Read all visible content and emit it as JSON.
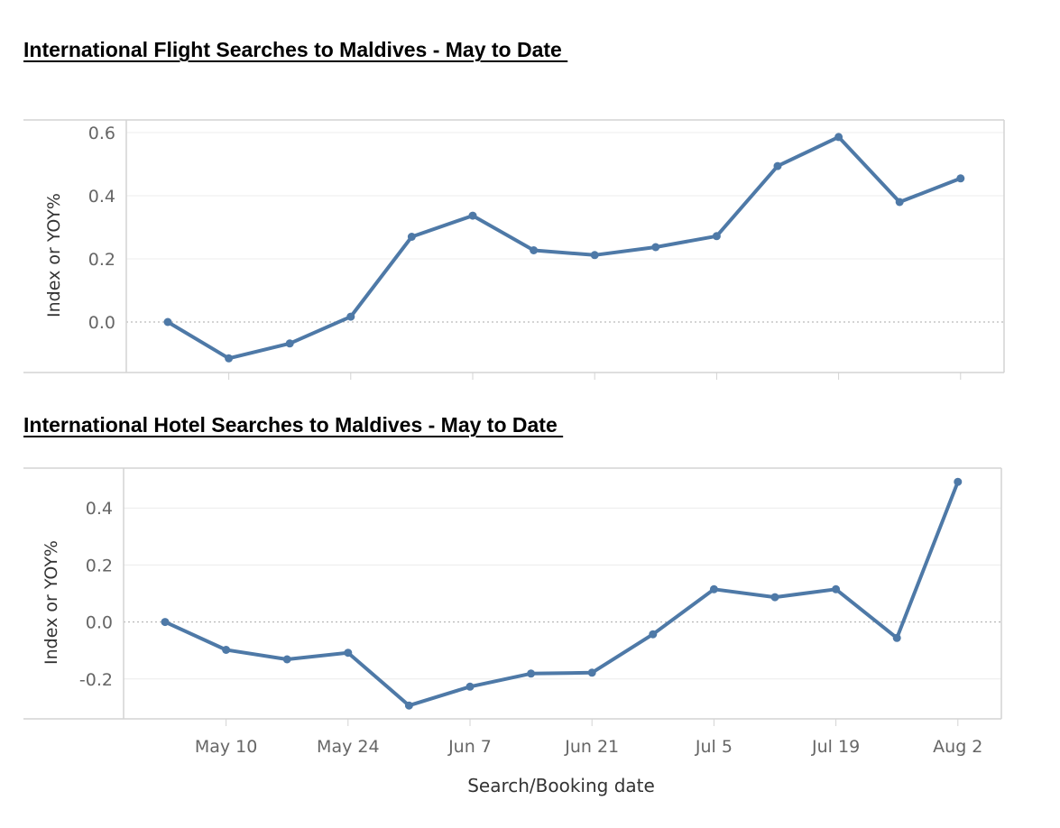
{
  "x_axis_title": "Search/Booking date",
  "x_tick_labels": [
    {
      "date": "2020-05-10",
      "label": "May 10"
    },
    {
      "date": "2020-05-24",
      "label": "May 24"
    },
    {
      "date": "2020-06-07",
      "label": "Jun 7"
    },
    {
      "date": "2020-06-21",
      "label": "Jun 21"
    },
    {
      "date": "2020-07-05",
      "label": "Jul 5"
    },
    {
      "date": "2020-07-19",
      "label": "Jul 19"
    },
    {
      "date": "2020-08-02",
      "label": "Aug 2"
    }
  ],
  "colors": {
    "line": "#4e79a7",
    "grid": "#ececec",
    "border": "#d3d3d3",
    "zero_line": "#aaaaaa"
  },
  "chart_data": [
    {
      "type": "line",
      "title": "International Flight Searches to Maldives - May to Date ",
      "xlabel": "",
      "ylabel": "Index or YOY%",
      "ylim": [
        -0.16,
        0.64
      ],
      "yticks": [
        0.0,
        0.2,
        0.4,
        0.6
      ],
      "ytick_labels": [
        "0.0",
        "0.2",
        "0.4",
        "0.6"
      ],
      "grid": true,
      "x": [
        "2020-05-03",
        "2020-05-10",
        "2020-05-17",
        "2020-05-24",
        "2020-05-31",
        "2020-06-07",
        "2020-06-14",
        "2020-06-21",
        "2020-06-28",
        "2020-07-05",
        "2020-07-12",
        "2020-07-19",
        "2020-07-26",
        "2020-08-02"
      ],
      "series": [
        {
          "values": [
            0.0,
            -0.115,
            -0.068,
            0.017,
            0.27,
            0.337,
            0.227,
            0.212,
            0.237,
            0.272,
            0.494,
            0.586,
            0.38,
            0.455
          ]
        }
      ]
    },
    {
      "type": "line",
      "title": "International Hotel Searches to Maldives - May to Date ",
      "xlabel": "Search/Booking date",
      "ylabel": "Index or YOY%",
      "ylim": [
        -0.34,
        0.54
      ],
      "yticks": [
        -0.2,
        0.0,
        0.2,
        0.4
      ],
      "ytick_labels": [
        "-0.2",
        "0.0",
        "0.2",
        "0.4"
      ],
      "grid": true,
      "x": [
        "2020-05-03",
        "2020-05-10",
        "2020-05-17",
        "2020-05-24",
        "2020-05-31",
        "2020-06-07",
        "2020-06-14",
        "2020-06-21",
        "2020-06-28",
        "2020-07-05",
        "2020-07-12",
        "2020-07-19",
        "2020-07-26",
        "2020-08-02"
      ],
      "series": [
        {
          "values": [
            0.0,
            -0.098,
            -0.131,
            -0.108,
            -0.293,
            -0.227,
            -0.181,
            -0.178,
            -0.043,
            0.115,
            0.087,
            0.115,
            -0.056,
            0.492
          ]
        }
      ]
    }
  ]
}
